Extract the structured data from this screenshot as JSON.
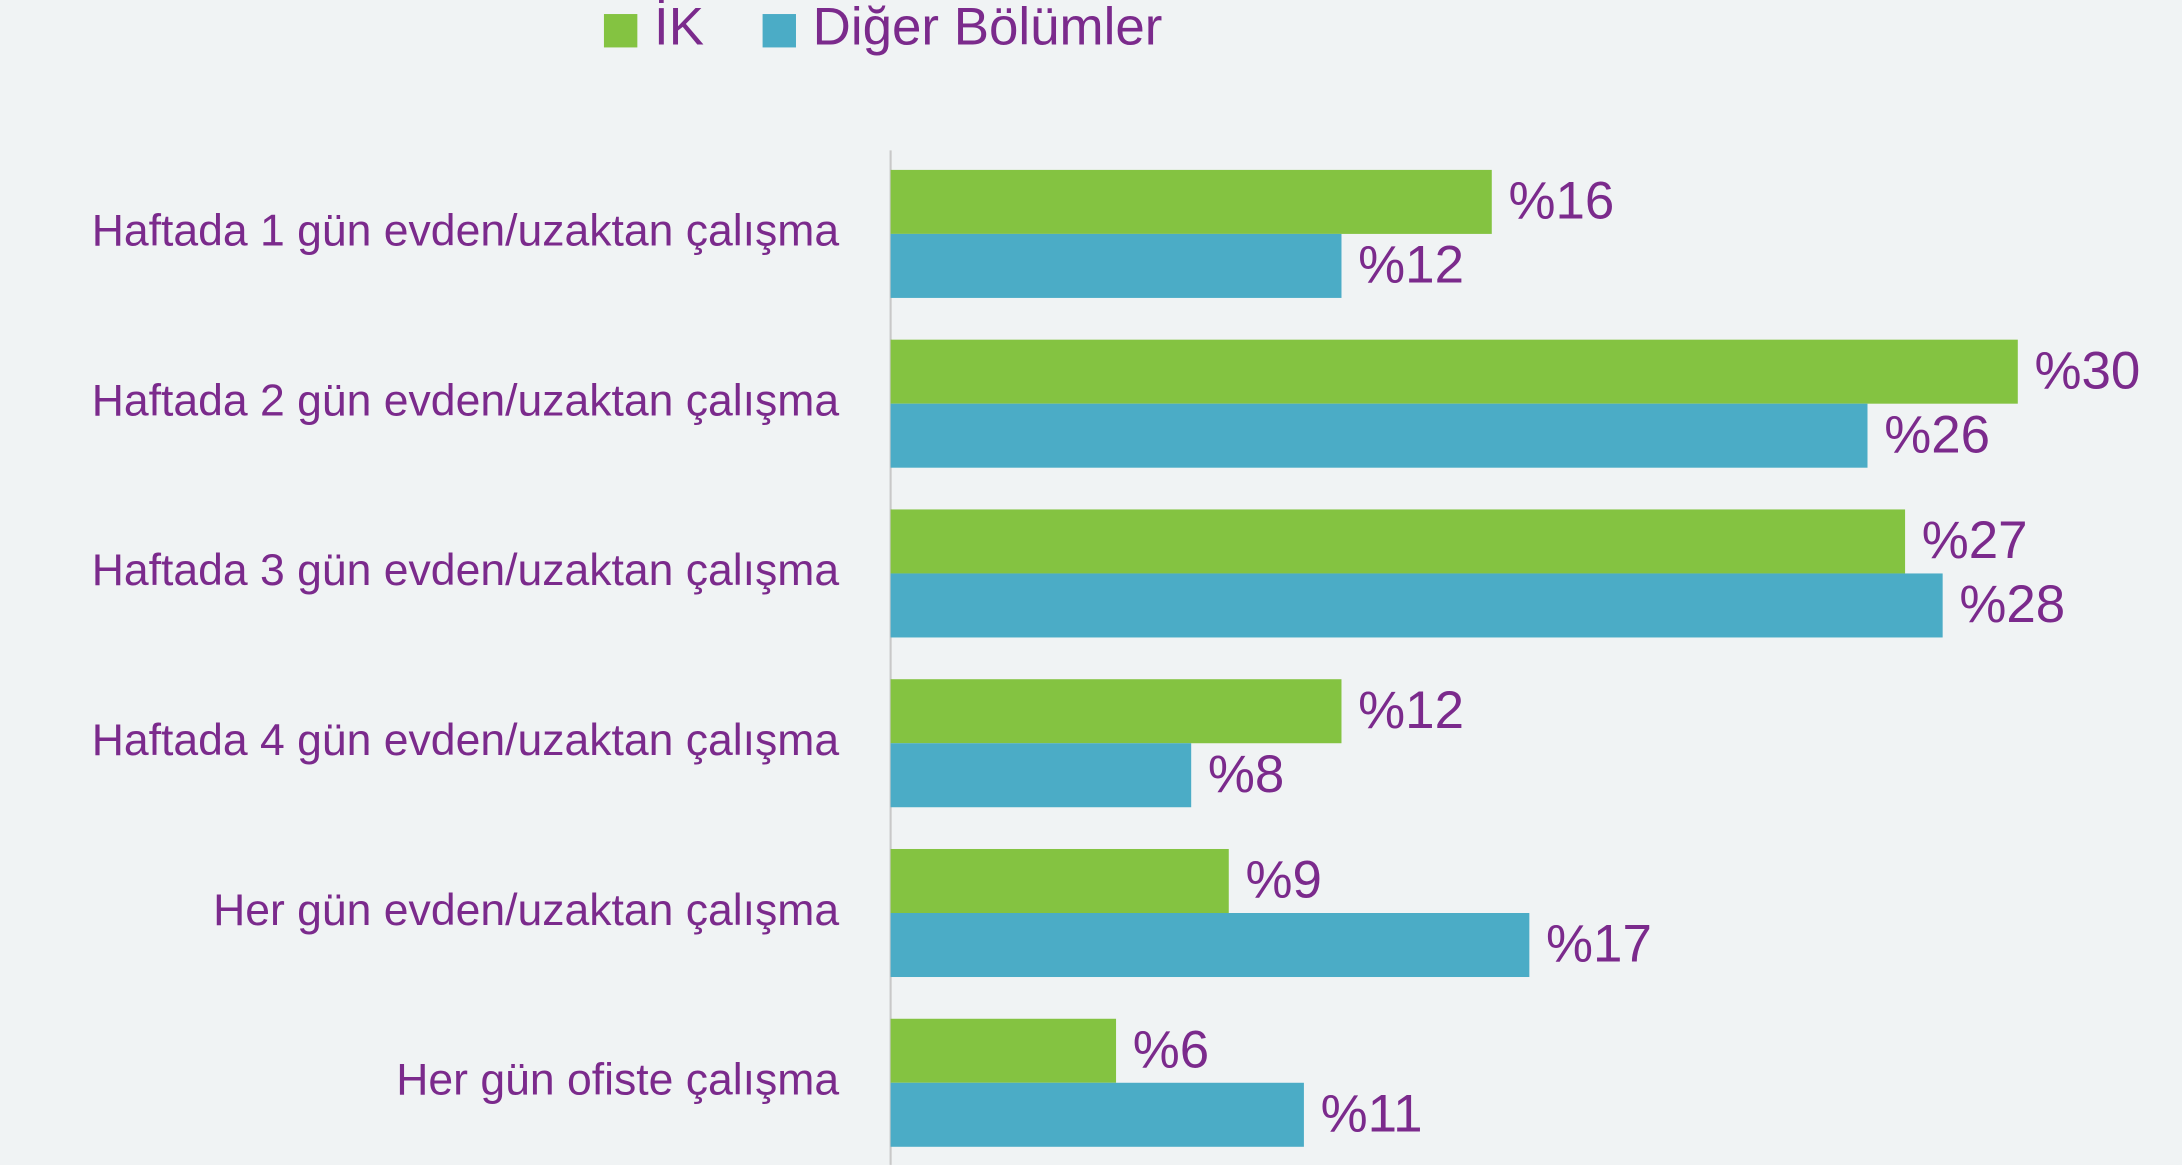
{
  "chart_data": {
    "type": "bar",
    "orientation": "horizontal",
    "categories": [
      "Haftada 1 gün evden/uzaktan çalışma",
      "Haftada 2 gün evden/uzaktan çalışma",
      "Haftada 3 gün evden/uzaktan çalışma",
      "Haftada 4 gün evden/uzaktan çalışma",
      "Her gün evden/uzaktan çalışma",
      "Her gün ofiste çalışma"
    ],
    "series": [
      {
        "name": "İK",
        "color": "#84c341",
        "values": [
          16,
          30,
          27,
          12,
          9,
          6
        ],
        "value_labels": [
          "%16",
          "%30",
          "%27",
          "%12",
          "%9",
          "%6"
        ]
      },
      {
        "name": "Diğer Bölümler",
        "color": "#4bacc6",
        "values": [
          12,
          26,
          28,
          8,
          17,
          11
        ],
        "value_labels": [
          "%12",
          "%26",
          "%28",
          "%8",
          "%17",
          "%11"
        ]
      }
    ],
    "xlim": [
      0,
      34
    ],
    "legend": "top"
  }
}
